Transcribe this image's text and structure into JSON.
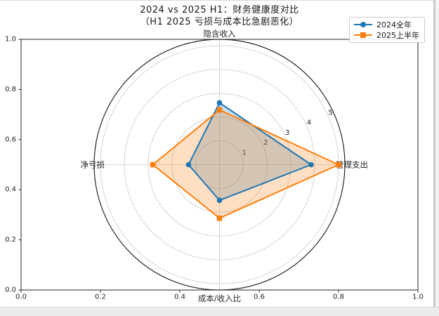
{
  "title": {
    "line1": "2024 vs 2025 H1：财务健康度对比",
    "line2": "（H1 2025 亏损与成本比急剧恶化）"
  },
  "colors": {
    "series_2024": "#1f77b4",
    "series_2025h1": "#ff7f0e",
    "grid": "#cccccc",
    "spine": "#262626",
    "text": "#262626"
  },
  "legend": {
    "position": "upper right",
    "items": [
      {
        "label": "2024全年",
        "marker": "circle"
      },
      {
        "label": "2025上半年",
        "marker": "square"
      }
    ]
  },
  "chart_data": {
    "type": "radar",
    "title": "2024 vs 2025 H1：财务健康度对比",
    "subtitle": "（H1 2025 亏损与成本比急剧恶化）",
    "categories": [
      "隐含收入",
      "管理支出",
      "成本/收入比",
      "净亏损"
    ],
    "angles_deg": [
      90,
      0,
      270,
      180
    ],
    "series": [
      {
        "name": "2024全年",
        "color": "#1f77b4",
        "marker": "circle",
        "values": [
          2.6,
          3.85,
          1.5,
          1.3
        ]
      },
      {
        "name": "2025上半年",
        "color": "#ff7f0e",
        "marker": "square",
        "values": [
          2.3,
          5.0,
          2.25,
          2.8
        ]
      }
    ],
    "radial_ticks": [
      "1",
      "2",
      "3",
      "4",
      "5"
    ],
    "r_max": 5.27,
    "fill_alpha": 0.25,
    "grid": true,
    "legend_position": "upper right",
    "outer_axes": {
      "x_ticks": [
        "0.0",
        "0.2",
        "0.4",
        "0.6",
        "0.8",
        "1.0"
      ],
      "y_ticks": [
        "0.0",
        "0.2",
        "0.4",
        "0.6",
        "0.8",
        "1.0"
      ]
    }
  }
}
